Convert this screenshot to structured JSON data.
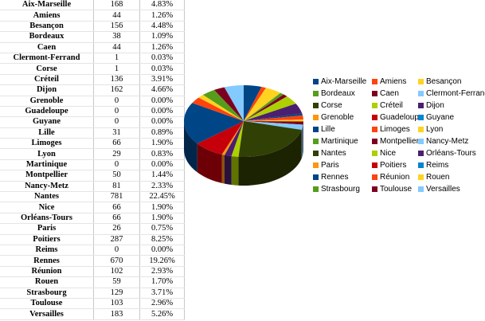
{
  "table": {
    "rows": [
      [
        "Aix-Marseille",
        "168",
        "4.83%"
      ],
      [
        "Amiens",
        "44",
        "1.26%"
      ],
      [
        "Besançon",
        "156",
        "4.48%"
      ],
      [
        "Bordeaux",
        "38",
        "1.09%"
      ],
      [
        "Caen",
        "44",
        "1.26%"
      ],
      [
        "Clermont-Ferrand",
        "1",
        "0.03%"
      ],
      [
        "Corse",
        "1",
        "0.03%"
      ],
      [
        "Créteil",
        "136",
        "3.91%"
      ],
      [
        "Dijon",
        "162",
        "4.66%"
      ],
      [
        "Grenoble",
        "0",
        "0.00%"
      ],
      [
        "Guadeloupe",
        "0",
        "0.00%"
      ],
      [
        "Guyane",
        "0",
        "0.00%"
      ],
      [
        "Lille",
        "31",
        "0.89%"
      ],
      [
        "Limoges",
        "66",
        "1.90%"
      ],
      [
        "Lyon",
        "29",
        "0.83%"
      ],
      [
        "Martinique",
        "0",
        "0.00%"
      ],
      [
        "Montpellier",
        "50",
        "1.44%"
      ],
      [
        "Nancy-Metz",
        "81",
        "2.33%"
      ],
      [
        "Nantes",
        "781",
        "22.45%"
      ],
      [
        "Nice",
        "66",
        "1.90%"
      ],
      [
        "Orléans-Tours",
        "66",
        "1.90%"
      ],
      [
        "Paris",
        "26",
        "0.75%"
      ],
      [
        "Poitiers",
        "287",
        "8.25%"
      ],
      [
        "Reims",
        "0",
        "0.00%"
      ],
      [
        "Rennes",
        "670",
        "19.26%"
      ],
      [
        "Réunion",
        "102",
        "2.93%"
      ],
      [
        "Rouen",
        "59",
        "1.70%"
      ],
      [
        "Strasbourg",
        "129",
        "3.71%"
      ],
      [
        "Toulouse",
        "103",
        "2.96%"
      ],
      [
        "Versailles",
        "183",
        "5.26%"
      ]
    ]
  },
  "chart_data": {
    "type": "pie",
    "style": "3d",
    "legend_position": "right",
    "palette": [
      "#004586",
      "#ff420e",
      "#ffd320",
      "#579d1c",
      "#7e0021",
      "#83caff",
      "#314004",
      "#aecf00",
      "#4b1f6f",
      "#ff950e",
      "#c5000b",
      "#0084d1"
    ],
    "categories": [
      "Aix-Marseille",
      "Amiens",
      "Besançon",
      "Bordeaux",
      "Caen",
      "Clermont-Ferrand",
      "Corse",
      "Créteil",
      "Dijon",
      "Grenoble",
      "Guadeloupe",
      "Guyane",
      "Lille",
      "Limoges",
      "Lyon",
      "Martinique",
      "Montpellier",
      "Nancy-Metz",
      "Nantes",
      "Nice",
      "Orléans-Tours",
      "Paris",
      "Poitiers",
      "Reims",
      "Rennes",
      "Réunion",
      "Rouen",
      "Strasbourg",
      "Toulouse",
      "Versailles"
    ],
    "values": [
      168,
      44,
      156,
      38,
      44,
      1,
      1,
      136,
      162,
      0,
      0,
      0,
      31,
      66,
      29,
      0,
      50,
      81,
      781,
      66,
      66,
      26,
      287,
      0,
      670,
      102,
      59,
      129,
      103,
      183
    ]
  }
}
